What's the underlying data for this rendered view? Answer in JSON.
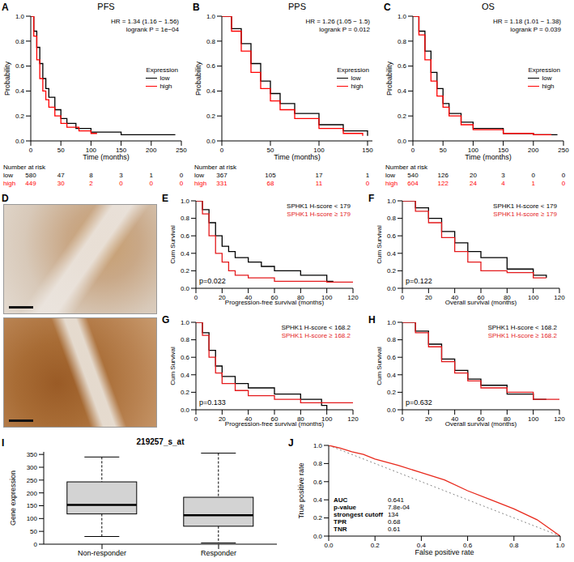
{
  "chart_data": [
    {
      "panel": "A",
      "type": "line",
      "title": "PFS",
      "x_label": "Time (months)",
      "y_label": "Probability",
      "annotations": [
        "HR = 1.34 (1.16 − 1.56)",
        "logrank P = 1e−04"
      ],
      "legend_title": "Expression",
      "legend": "right",
      "line_style": "step",
      "xlim": [
        0,
        250
      ],
      "xticks": [
        0,
        50,
        100,
        150,
        200,
        250
      ],
      "ylim": [
        0,
        1
      ],
      "yticks": [
        {
          "value": 0,
          "label": "0.0"
        },
        0.2,
        0.4,
        0.6,
        0.8,
        {
          "value": 1,
          "label": "1.0"
        }
      ],
      "series": [
        {
          "name": "low",
          "color": "#000000",
          "x": [
            0,
            5,
            10,
            15,
            20,
            25,
            30,
            40,
            50,
            60,
            75,
            100,
            150,
            200,
            240
          ],
          "values": [
            1,
            0.88,
            0.75,
            0.62,
            0.5,
            0.42,
            0.35,
            0.25,
            0.18,
            0.14,
            0.1,
            0.07,
            0.05,
            0.05,
            0.05
          ]
        },
        {
          "name": "high",
          "color": "#ff0000",
          "x": [
            0,
            5,
            10,
            15,
            20,
            25,
            30,
            40,
            50,
            60,
            80,
            100,
            110
          ],
          "values": [
            1,
            0.84,
            0.65,
            0.5,
            0.4,
            0.33,
            0.27,
            0.2,
            0.14,
            0.11,
            0.08,
            0.06,
            0.06
          ]
        }
      ],
      "risk_table": {
        "title": "Number at risk",
        "x": [
          0,
          50,
          100,
          150,
          200,
          250
        ],
        "rows": [
          {
            "name": "low",
            "color": "#000000",
            "values": [
              580,
              47,
              8,
              3,
              1,
              0
            ]
          },
          {
            "name": "high",
            "color": "#ff0000",
            "values": [
              449,
              30,
              2,
              0,
              0,
              0
            ]
          }
        ]
      }
    },
    {
      "panel": "B",
      "type": "line",
      "title": "PPS",
      "x_label": "Time (months)",
      "y_label": "Probability",
      "annotations": [
        "HR = 1.26 (1.05 − 1.5)",
        "logrank P = 0.012"
      ],
      "legend_title": "Expression",
      "legend": "right",
      "line_style": "step",
      "xlim": [
        0,
        155
      ],
      "xticks": [
        0,
        50,
        100,
        150
      ],
      "ylim": [
        0,
        1
      ],
      "yticks": [
        {
          "value": 0,
          "label": "0.0"
        },
        0.2,
        0.4,
        0.6,
        0.8,
        {
          "value": 1,
          "label": "1.0"
        }
      ],
      "series": [
        {
          "name": "low",
          "color": "#000000",
          "x": [
            0,
            10,
            20,
            30,
            40,
            50,
            60,
            75,
            100,
            125,
            150
          ],
          "values": [
            1,
            0.9,
            0.78,
            0.62,
            0.48,
            0.38,
            0.3,
            0.22,
            0.13,
            0.08,
            0.04
          ]
        },
        {
          "name": "high",
          "color": "#ff0000",
          "x": [
            0,
            10,
            20,
            30,
            40,
            50,
            60,
            75,
            100,
            125,
            145
          ],
          "values": [
            1,
            0.88,
            0.72,
            0.55,
            0.42,
            0.32,
            0.25,
            0.18,
            0.1,
            0.06,
            0.04
          ]
        }
      ],
      "risk_table": {
        "title": "Number at risk",
        "x": [
          0,
          50,
          100,
          150
        ],
        "rows": [
          {
            "name": "low",
            "color": "#000000",
            "values": [
              367,
              105,
              17,
              1
            ]
          },
          {
            "name": "high",
            "color": "#ff0000",
            "values": [
              331,
              68,
              11,
              0
            ]
          }
        ]
      }
    },
    {
      "panel": "C",
      "type": "line",
      "title": "OS",
      "x_label": "Time (months)",
      "y_label": "Probability",
      "annotations": [
        "HR = 1.18 (1.01 − 1.38)",
        "logrank P = 0.039"
      ],
      "legend_title": "Expression",
      "legend": "right",
      "line_style": "step",
      "xlim": [
        0,
        250
      ],
      "xticks": [
        0,
        50,
        100,
        150,
        200,
        250
      ],
      "ylim": [
        0,
        1
      ],
      "yticks": [
        {
          "value": 0,
          "label": "0.0"
        },
        0.2,
        0.4,
        0.6,
        0.8,
        {
          "value": 1,
          "label": "1.0"
        }
      ],
      "series": [
        {
          "name": "low",
          "color": "#000000",
          "x": [
            0,
            10,
            20,
            30,
            40,
            50,
            60,
            80,
            100,
            150,
            200,
            240
          ],
          "values": [
            1,
            0.88,
            0.72,
            0.55,
            0.42,
            0.3,
            0.22,
            0.15,
            0.1,
            0.06,
            0.05,
            0.05
          ]
        },
        {
          "name": "high",
          "color": "#ff0000",
          "x": [
            0,
            10,
            20,
            30,
            40,
            50,
            60,
            80,
            100,
            150,
            200,
            230
          ],
          "values": [
            1,
            0.85,
            0.65,
            0.48,
            0.36,
            0.27,
            0.2,
            0.13,
            0.09,
            0.06,
            0.05,
            0.05
          ]
        }
      ],
      "risk_table": {
        "title": "Number at risk",
        "x": [
          0,
          50,
          100,
          150,
          200,
          250
        ],
        "rows": [
          {
            "name": "low",
            "color": "#000000",
            "values": [
              540,
              126,
              20,
              3,
              0,
              0
            ]
          },
          {
            "name": "high",
            "color": "#ff0000",
            "values": [
              604,
              122,
              24,
              4,
              1,
              0
            ]
          }
        ]
      }
    },
    {
      "panel": "D",
      "type": "image"
    },
    {
      "panel": "E",
      "type": "line",
      "x_label": "Progression-free survival (months)",
      "y_label": "Cum Survival",
      "annotations": [
        "p=0.022"
      ],
      "legend": "top-right",
      "line_style": "step",
      "xlim": [
        0,
        120
      ],
      "xticks": [
        0,
        20,
        40,
        60,
        80,
        100,
        120
      ],
      "ylim": [
        0,
        1
      ],
      "yticks": [
        {
          "value": 0,
          "label": "0.0"
        },
        0.2,
        0.4,
        0.6,
        0.8,
        {
          "value": 1,
          "label": "1.0"
        }
      ],
      "series": [
        {
          "name": "SPHK1 H-score < 179",
          "color": "#000000",
          "x": [
            0,
            5,
            10,
            15,
            20,
            25,
            30,
            40,
            50,
            60,
            80,
            100,
            105
          ],
          "values": [
            1,
            0.9,
            0.75,
            0.6,
            0.48,
            0.42,
            0.35,
            0.3,
            0.25,
            0.2,
            0.15,
            0.08,
            0.08
          ]
        },
        {
          "name": "SPHK1 H-score ≥ 179",
          "color": "#e41a1c",
          "x": [
            0,
            5,
            10,
            15,
            20,
            25,
            30,
            40,
            60,
            100,
            120
          ],
          "values": [
            1,
            0.85,
            0.6,
            0.4,
            0.3,
            0.2,
            0.15,
            0.12,
            0.08,
            0.07,
            0.07
          ]
        }
      ]
    },
    {
      "panel": "F",
      "type": "line",
      "x_label": "Overall survival (months)",
      "y_label": "Cum Survival",
      "annotations": [
        "p=0.122"
      ],
      "legend": "top-right",
      "line_style": "step",
      "xlim": [
        0,
        120
      ],
      "xticks": [
        0,
        20,
        40,
        60,
        80,
        100,
        120
      ],
      "ylim": [
        0,
        1
      ],
      "yticks": [
        {
          "value": 0,
          "label": "0.0"
        },
        0.2,
        0.4,
        0.6,
        0.8,
        {
          "value": 1,
          "label": "1.0"
        }
      ],
      "series": [
        {
          "name": "SPHK1 H-score < 179",
          "color": "#000000",
          "x": [
            0,
            10,
            20,
            30,
            40,
            50,
            60,
            80,
            100,
            110
          ],
          "values": [
            1,
            0.92,
            0.8,
            0.65,
            0.52,
            0.42,
            0.35,
            0.22,
            0.15,
            0.12
          ]
        },
        {
          "name": "SPHK1 H-score ≥ 179",
          "color": "#e41a1c",
          "x": [
            0,
            10,
            20,
            30,
            40,
            50,
            60,
            80,
            100,
            110
          ],
          "values": [
            1,
            0.88,
            0.75,
            0.58,
            0.42,
            0.3,
            0.2,
            0.18,
            0.12,
            0.12
          ]
        }
      ]
    },
    {
      "panel": "G",
      "type": "line",
      "x_label": "Progression-free survival (months)",
      "y_label": "Cum Survival",
      "annotations": [
        "p=0.133"
      ],
      "legend": "top-right",
      "line_style": "step",
      "xlim": [
        0,
        120
      ],
      "xticks": [
        0,
        20,
        40,
        60,
        80,
        100,
        120
      ],
      "ylim": [
        0,
        1
      ],
      "yticks": [
        {
          "value": 0,
          "label": "0.0"
        },
        0.2,
        0.4,
        0.6,
        0.8,
        {
          "value": 1,
          "label": "1.0"
        }
      ],
      "series": [
        {
          "name": "SPHK1 H-score < 168.2",
          "color": "#000000",
          "x": [
            0,
            5,
            10,
            15,
            20,
            30,
            40,
            60,
            80,
            96,
            100
          ],
          "values": [
            1,
            0.88,
            0.68,
            0.5,
            0.38,
            0.3,
            0.25,
            0.18,
            0.12,
            0.05,
            0
          ]
        },
        {
          "name": "SPHK1 H-score ≥ 168.2",
          "color": "#e41a1c",
          "x": [
            0,
            5,
            10,
            15,
            20,
            30,
            40,
            60,
            80,
            120
          ],
          "values": [
            1,
            0.85,
            0.6,
            0.42,
            0.3,
            0.22,
            0.16,
            0.12,
            0.08,
            0.08
          ]
        }
      ]
    },
    {
      "panel": "H",
      "type": "line",
      "x_label": "Overall survival (months)",
      "y_label": "Cum Survival",
      "annotations": [
        "p=0.632"
      ],
      "legend": "top-right",
      "line_style": "step",
      "xlim": [
        0,
        120
      ],
      "xticks": [
        0,
        20,
        40,
        60,
        80,
        100,
        120
      ],
      "ylim": [
        0,
        1
      ],
      "yticks": [
        {
          "value": 0,
          "label": "0.0"
        },
        0.2,
        0.4,
        0.6,
        0.8,
        {
          "value": 1,
          "label": "1.0"
        }
      ],
      "series": [
        {
          "name": "SPHK1 H-score < 168.2",
          "color": "#000000",
          "x": [
            0,
            10,
            20,
            30,
            40,
            50,
            60,
            80,
            100,
            110
          ],
          "values": [
            1,
            0.9,
            0.75,
            0.58,
            0.45,
            0.35,
            0.28,
            0.18,
            0.12,
            0.12
          ]
        },
        {
          "name": "SPHK1 H-score ≥ 168.2",
          "color": "#e41a1c",
          "x": [
            0,
            10,
            20,
            30,
            40,
            50,
            60,
            80,
            100,
            120
          ],
          "values": [
            1,
            0.88,
            0.72,
            0.55,
            0.42,
            0.33,
            0.25,
            0.2,
            0.12,
            0.12
          ]
        }
      ]
    },
    {
      "panel": "I",
      "type": "box",
      "title": "219257_s_at",
      "y_label": "Gene expression",
      "categories": [
        "Non-responder",
        "Responder"
      ],
      "color": "#d3d3d3",
      "stats": [
        {
          "min": 30,
          "q1": 118,
          "median": 153,
          "q3": 243,
          "max": 340
        },
        {
          "min": 5,
          "q1": 70,
          "median": 113,
          "q3": 183,
          "max": 355
        }
      ],
      "ylim": [
        0,
        360
      ],
      "yticks": [
        0,
        50,
        100,
        150,
        200,
        250,
        300,
        350
      ]
    },
    {
      "panel": "J",
      "type": "line",
      "x_label": "False positive rate",
      "y_label": "True positive rate",
      "xlim": [
        0,
        1
      ],
      "xticks": [
        {
          "value": 0,
          "label": "0.0"
        },
        0.2,
        0.4,
        0.6,
        0.8,
        {
          "value": 1,
          "label": "1.0"
        }
      ],
      "ylim": [
        0,
        1
      ],
      "yticks": [
        {
          "value": 0,
          "label": "0.0"
        },
        0.2,
        0.4,
        0.6,
        0.8,
        {
          "value": 1,
          "label": "1.0"
        }
      ],
      "series": [
        {
          "color": "#e8291c",
          "x": [
            0,
            0.05,
            0.1,
            0.15,
            0.2,
            0.3,
            0.4,
            0.5,
            0.6,
            0.7,
            0.8,
            0.9,
            1
          ],
          "values": [
            1,
            0.97,
            0.93,
            0.9,
            0.85,
            0.78,
            0.7,
            0.62,
            0.5,
            0.4,
            0.3,
            0.18,
            0
          ]
        }
      ],
      "reference_line": {
        "color": "#888888",
        "line_style": "dotted",
        "x": [
          0,
          1
        ],
        "values": [
          1,
          0
        ]
      },
      "stats_table": [
        [
          "AUC",
          "0.641"
        ],
        [
          "p-value",
          "7.8e-04"
        ],
        [
          "strongest cutoff",
          "134"
        ],
        [
          "TPR",
          "0.68"
        ],
        [
          "TNR",
          "0.61"
        ]
      ]
    }
  ]
}
